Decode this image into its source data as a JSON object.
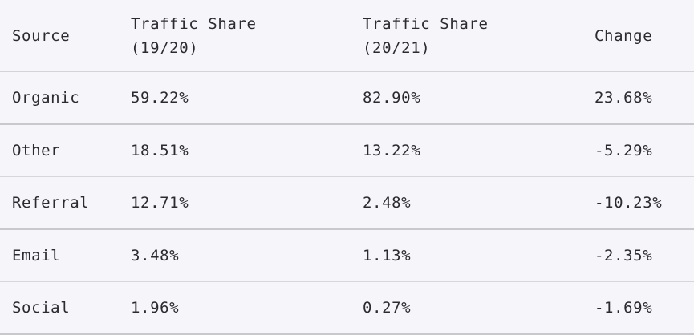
{
  "table": {
    "headers": {
      "source": "Source",
      "share_1920_line1": "Traffic Share",
      "share_1920_line2": "(19/20)",
      "share_2021_line1": "Traffic Share",
      "share_2021_line2": "(20/21)",
      "change": "Change"
    },
    "rows": [
      {
        "source": "Organic",
        "share_1920": "59.22%",
        "share_2021": "82.90%",
        "change": "23.68%"
      },
      {
        "source": "Other",
        "share_1920": "18.51%",
        "share_2021": "13.22%",
        "change": "-5.29%"
      },
      {
        "source": "Referral",
        "share_1920": "12.71%",
        "share_2021": "2.48%",
        "change": "-10.23%"
      },
      {
        "source": "Email",
        "share_1920": "3.48%",
        "share_2021": "1.13%",
        "change": "-2.35%"
      },
      {
        "source": "Social",
        "share_1920": "1.96%",
        "share_2021": "0.27%",
        "change": "-1.69%"
      }
    ]
  }
}
